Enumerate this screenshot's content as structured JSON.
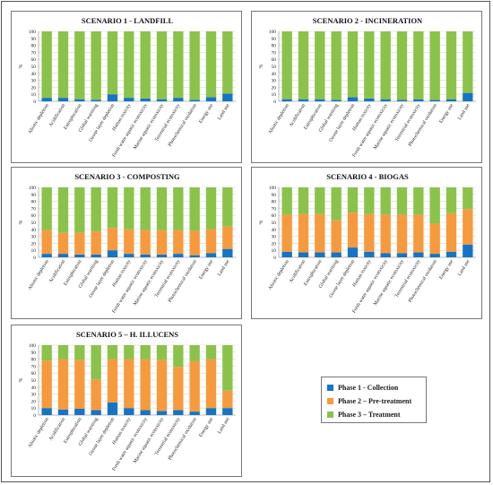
{
  "colors": {
    "collection": "#1674c6",
    "pretreatment": "#f79a3e",
    "treatment": "#8bc34a"
  },
  "categories": [
    "Abiotic depletion",
    "Acidification",
    "Eutrophication",
    "Global warming",
    "Ozone layer depletion",
    "Human toxicity",
    "Fresh water aquatic ecotoxicity",
    "Marine aquatic ecotoxicity",
    "Terrestrial ecotoxicity",
    "Photochemical oxidation",
    "Energy use",
    "Land use"
  ],
  "legend": {
    "collection": "Phase 1 - Collection",
    "pretreatment": "Phase 2 – Pre-treatment",
    "treatment": "Phase 3 – Treatment"
  },
  "chart_data": [
    {
      "type": "bar",
      "stacked": true,
      "title": "SCENARIO 1 - LANDFILL",
      "ylabel": "%",
      "ylim": [
        0,
        100
      ],
      "categories": [
        "Abiotic depletion",
        "Acidification",
        "Eutrophication",
        "Global warming",
        "Ozone layer depletion",
        "Human toxicity",
        "Fresh water aquatic ecotoxicity",
        "Marine aquatic ecotoxicity",
        "Terrestrial ecotoxicity",
        "Photochemical oxidation",
        "Energy use",
        "Land use"
      ],
      "series": [
        {
          "name": "Phase 1 - Collection",
          "values": [
            5,
            5,
            3,
            2,
            10,
            5,
            4,
            3,
            5,
            2,
            6,
            11
          ]
        },
        {
          "name": "Phase 2 – Pre-treatment",
          "values": [
            0,
            0,
            0,
            0,
            0,
            0,
            0,
            0,
            0,
            0,
            0,
            0
          ]
        },
        {
          "name": "Phase 3 – Treatment",
          "values": [
            95,
            95,
            97,
            98,
            90,
            95,
            96,
            97,
            95,
            98,
            94,
            89
          ]
        }
      ]
    },
    {
      "type": "bar",
      "stacked": true,
      "title": "SCENARIO 2 - INCINERATION",
      "ylabel": "%",
      "ylim": [
        0,
        100
      ],
      "categories": [
        "Abiotic depletion",
        "Acidification",
        "Eutrophication",
        "Global warming",
        "Ozone layer depletion",
        "Human toxicity",
        "Fresh water aquatic ecotoxicity",
        "Marine aquatic ecotoxicity",
        "Terrestrial ecotoxicity",
        "Photochemical oxidation",
        "Energy use",
        "Land use"
      ],
      "series": [
        {
          "name": "Phase 1 - Collection",
          "values": [
            3,
            3,
            3,
            2,
            6,
            4,
            3,
            2,
            3,
            2,
            3,
            12
          ]
        },
        {
          "name": "Phase 2 – Pre-treatment",
          "values": [
            0,
            0,
            0,
            0,
            0,
            0,
            0,
            0,
            0,
            0,
            0,
            0
          ]
        },
        {
          "name": "Phase 3 – Treatment",
          "values": [
            97,
            97,
            97,
            98,
            94,
            96,
            97,
            98,
            97,
            98,
            97,
            88
          ]
        }
      ]
    },
    {
      "type": "bar",
      "stacked": true,
      "title": "SCENARIO 3 - COMPOSTING",
      "ylabel": "%",
      "ylim": [
        0,
        100
      ],
      "categories": [
        "Abiotic depletion",
        "Acidification",
        "Eutrophication",
        "Global warming",
        "Ozone layer depletion",
        "Human toxicity",
        "Fresh water aquatic ecotoxicity",
        "Marine aquatic ecotoxicity",
        "Terrestrial ecotoxicity",
        "Photochemical oxidation",
        "Energy use",
        "Land use"
      ],
      "series": [
        {
          "name": "Phase 1 - Collection",
          "values": [
            5,
            5,
            4,
            4,
            10,
            5,
            4,
            4,
            5,
            3,
            6,
            12
          ]
        },
        {
          "name": "Phase 2 – Pre-treatment",
          "values": [
            34,
            30,
            31,
            33,
            32,
            35,
            35,
            35,
            34,
            35,
            34,
            32
          ]
        },
        {
          "name": "Phase 3 – Treatment",
          "values": [
            61,
            65,
            65,
            63,
            58,
            60,
            61,
            61,
            61,
            62,
            60,
            56
          ]
        }
      ]
    },
    {
      "type": "bar",
      "stacked": true,
      "title": "SCENARIO 4 - BIOGAS",
      "ylabel": "%",
      "ylim": [
        0,
        100
      ],
      "categories": [
        "Abiotic depletion",
        "Acidification",
        "Eutrophication",
        "Global warming",
        "Ozone layer depletion",
        "Human toxicity",
        "Fresh water aquatic ecotoxicity",
        "Marine aquatic ecotoxicity",
        "Terrestrial ecotoxicity",
        "Photochemical oxidation",
        "Energy use",
        "Land use"
      ],
      "series": [
        {
          "name": "Phase 1 - Collection",
          "values": [
            8,
            7,
            7,
            7,
            14,
            8,
            6,
            6,
            7,
            5,
            8,
            18
          ]
        },
        {
          "name": "Phase 2 – Pre-treatment",
          "values": [
            53,
            55,
            55,
            46,
            50,
            54,
            55,
            55,
            54,
            43,
            55,
            51
          ]
        },
        {
          "name": "Phase 3 – Treatment",
          "values": [
            39,
            38,
            38,
            47,
            36,
            38,
            39,
            39,
            39,
            52,
            37,
            31
          ]
        }
      ]
    },
    {
      "type": "bar",
      "stacked": true,
      "title": "SCENARIO 5 – H. ILLUCENS",
      "ylabel": "%",
      "ylim": [
        0,
        100
      ],
      "categories": [
        "Abiotic depletion",
        "Acidification",
        "Eutrophication",
        "Global warming",
        "Ozone layer depletion",
        "Human toxicity",
        "Fresh water aquatic ecotoxicity",
        "Marine aquatic ecotoxicity",
        "Terrestrial ecotoxicity",
        "Photochemical oxidation",
        "Energy use",
        "Land use"
      ],
      "series": [
        {
          "name": "Phase 1 - Collection",
          "values": [
            10,
            8,
            9,
            7,
            18,
            10,
            7,
            6,
            7,
            5,
            10,
            10
          ]
        },
        {
          "name": "Phase 2 – Pre-treatment",
          "values": [
            68,
            72,
            70,
            44,
            62,
            70,
            73,
            73,
            62,
            72,
            70,
            25
          ]
        },
        {
          "name": "Phase 3 – Treatment",
          "values": [
            22,
            20,
            21,
            49,
            20,
            20,
            20,
            21,
            31,
            23,
            20,
            65
          ]
        }
      ]
    }
  ]
}
